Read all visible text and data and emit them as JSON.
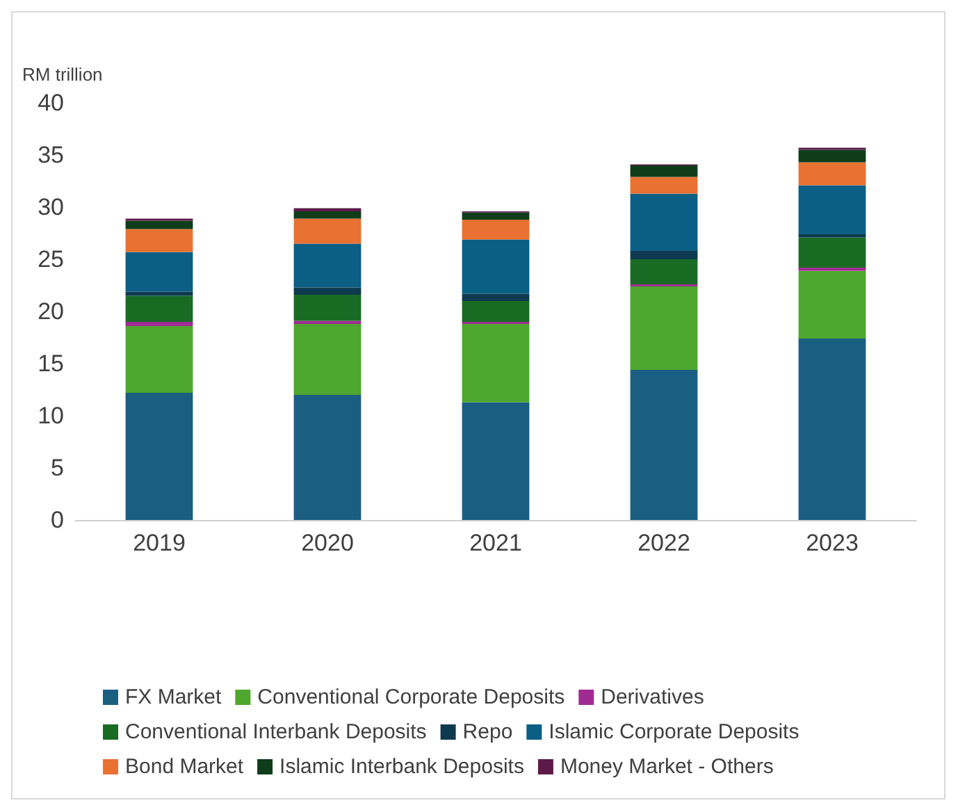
{
  "chart_data": {
    "type": "bar",
    "stacked": true,
    "ylabel": "RM trillion",
    "categories": [
      "2019",
      "2020",
      "2021",
      "2022",
      "2023"
    ],
    "ylim": [
      0,
      40
    ],
    "yticks": [
      0,
      5,
      10,
      15,
      20,
      25,
      30,
      35,
      40
    ],
    "grid": false,
    "legend": "bottom",
    "series": [
      {
        "name": "FX Market",
        "color": "#1a5f82",
        "values": [
          12.2,
          12.0,
          11.3,
          14.4,
          17.4
        ]
      },
      {
        "name": "Conventional Corporate Deposits",
        "color": "#4ea72e",
        "values": [
          6.4,
          6.8,
          7.5,
          8.0,
          6.5
        ]
      },
      {
        "name": "Derivatives",
        "color": "#a02b93",
        "values": [
          0.4,
          0.3,
          0.2,
          0.2,
          0.3
        ]
      },
      {
        "name": "Conventional Interbank Deposits",
        "color": "#196b24",
        "values": [
          2.5,
          2.5,
          2.0,
          2.4,
          2.9
        ]
      },
      {
        "name": "Repo",
        "color": "#0e3a4f",
        "values": [
          0.4,
          0.7,
          0.7,
          0.8,
          0.3
        ]
      },
      {
        "name": "Islamic Corporate Deposits",
        "color": "#0b5e84",
        "values": [
          3.8,
          4.2,
          5.2,
          5.5,
          4.7
        ]
      },
      {
        "name": "Bond Market",
        "color": "#e97132",
        "values": [
          2.2,
          2.4,
          1.9,
          1.6,
          2.2
        ]
      },
      {
        "name": "Islamic Interbank Deposits",
        "color": "#0f3d1a",
        "values": [
          0.8,
          0.7,
          0.7,
          1.1,
          1.2
        ]
      },
      {
        "name": "Money Market - Others",
        "color": "#5c1a4a",
        "values": [
          0.2,
          0.3,
          0.1,
          0.1,
          0.2
        ]
      }
    ]
  }
}
